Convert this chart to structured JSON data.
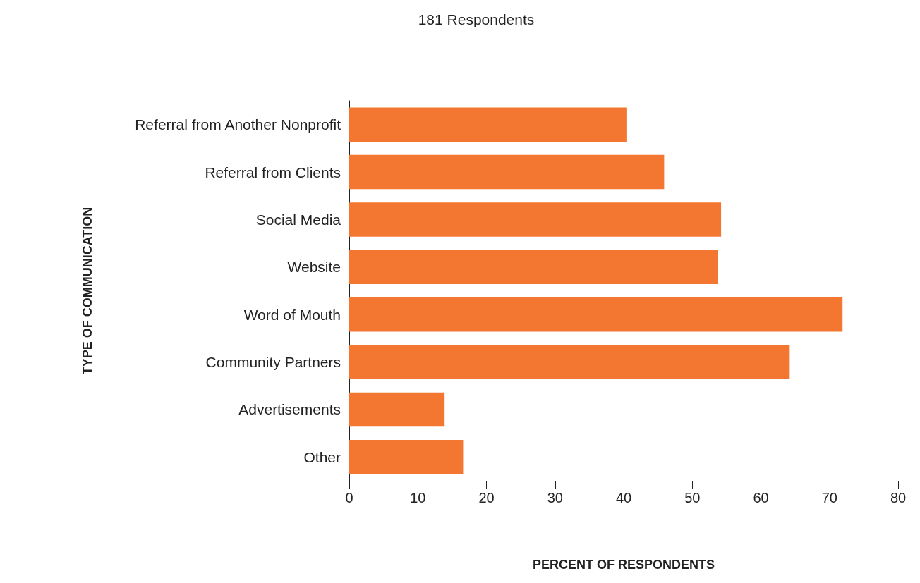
{
  "chart_data": {
    "type": "bar",
    "orientation": "horizontal",
    "title": "181 Respondents",
    "xlabel": "PERCENT OF RESPONDENTS",
    "ylabel": "TYPE OF COMMUNICATION",
    "categories": [
      "Referral from Another Nonprofit",
      "Referral from Clients",
      "Social Media",
      "Website",
      "Word of Mouth",
      "Community Partners",
      "Advertisements",
      "Other"
    ],
    "values": [
      40.4,
      45.9,
      54.2,
      53.7,
      71.9,
      64.2,
      13.9,
      16.6
    ],
    "color": "#f37731",
    "xlim": [
      0,
      80
    ],
    "xticks": [
      0,
      10,
      20,
      30,
      40,
      50,
      60,
      70,
      80
    ],
    "grid": false
  }
}
